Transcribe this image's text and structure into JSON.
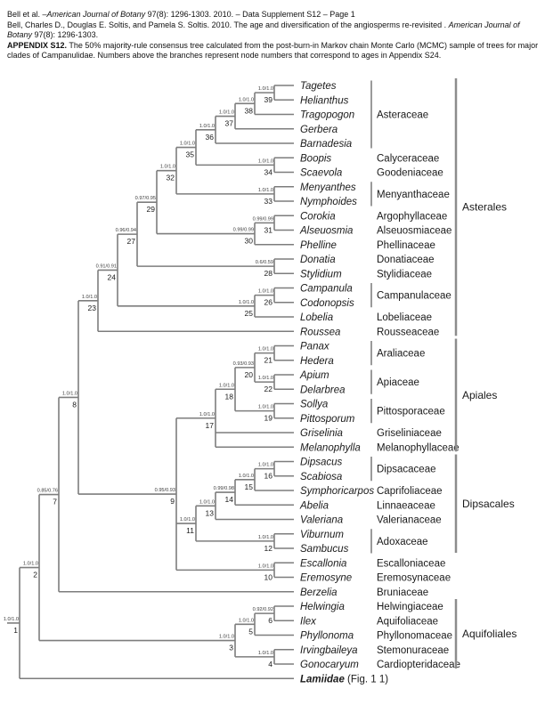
{
  "header": {
    "line1": {
      "pre": "Bell et al. –",
      "italic": "American Journal of Botany",
      "post": " 97(8): 1296-1303. 2010. – Data Supplement S12 – Page 1"
    },
    "line2": {
      "pre": "Bell, Charles D., Douglas E. Soltis, and Pamela S. Soltis. 2010. The age and diversification of the angiosperms re-revisited . ",
      "italic": "American Journal of Botany",
      "post": " 97(8): 1296-1303."
    },
    "line3": {
      "bold": "APPENDIX S12.",
      "text": " The 50% majority-rule consensus tree calculated from the post-burn-in Markov chain Monte Carlo (MCMC) sample of trees for major clades of Campanulidae. Numbers above the branches represent node numbers that correspond to ages in Appendix S24."
    }
  },
  "colors": {
    "branch": "#7d7d7d",
    "bracket": "#9a9a9a",
    "bar": "#8c8c8c",
    "text": "#1a1a1a",
    "support": "#3a3a3a"
  },
  "tree": {
    "id": 1,
    "support": "1.0/1.0",
    "children": [
      {
        "id": 2,
        "support": "1.0/1.0",
        "children": [
          {
            "id": 7,
            "support": "0.85/0.76",
            "children": [
              {
                "id": 8,
                "support": "1.0/1.0",
                "children": [
                  {
                    "id": 23,
                    "support": "1.0/1.0",
                    "children": [
                      {
                        "id": 24,
                        "support": "0.91/0.91",
                        "children": [
                          {
                            "id": 27,
                            "support": "0.96/0.94",
                            "children": [
                              {
                                "id": 29,
                                "support": "0.97/0.95",
                                "children": [
                                  {
                                    "id": 32,
                                    "support": "1.0/1.0",
                                    "children": [
                                      {
                                        "id": 35,
                                        "support": "1.0/1.0",
                                        "children": [
                                          {
                                            "id": 36,
                                            "support": "1.0/1.0",
                                            "children": [
                                              {
                                                "id": 37,
                                                "support": "1.0/1.0",
                                                "children": [
                                                  {
                                                    "id": 38,
                                                    "support": "1.0/1.0",
                                                    "children": [
                                                      {
                                                        "id": 39,
                                                        "support": "1.0/1.0",
                                                        "children": [
                                                          {
                                                            "tip": "Tagetes"
                                                          },
                                                          {
                                                            "tip": "Helianthus"
                                                          }
                                                        ]
                                                      },
                                                      {
                                                        "tip": "Tragopogon"
                                                      }
                                                    ]
                                                  },
                                                  {
                                                    "tip": "Gerbera"
                                                  }
                                                ]
                                              },
                                              {
                                                "tip": "Barnadesia"
                                              }
                                            ]
                                          },
                                          {
                                            "id": 34,
                                            "support": "1.0/1.0",
                                            "children": [
                                              {
                                                "tip": "Boopis"
                                              },
                                              {
                                                "tip": "Scaevola"
                                              }
                                            ]
                                          }
                                        ]
                                      },
                                      {
                                        "id": 33,
                                        "support": "1.0/1.0",
                                        "children": [
                                          {
                                            "tip": "Menyanthes"
                                          },
                                          {
                                            "tip": "Nymphoides"
                                          }
                                        ]
                                      }
                                    ]
                                  },
                                  {
                                    "id": 30,
                                    "support": "0.99/0.99",
                                    "children": [
                                      {
                                        "id": 31,
                                        "support": "0.99/0.99",
                                        "children": [
                                          {
                                            "tip": "Corokia"
                                          },
                                          {
                                            "tip": "Alseuosmia"
                                          }
                                        ]
                                      },
                                      {
                                        "tip": "Phelline"
                                      }
                                    ]
                                  }
                                ]
                              },
                              {
                                "id": 28,
                                "support": "0.6/0.59",
                                "children": [
                                  {
                                    "tip": "Donatia"
                                  },
                                  {
                                    "tip": "Stylidium"
                                  }
                                ]
                              }
                            ]
                          },
                          {
                            "id": 25,
                            "support": "1.0/1.0",
                            "children": [
                              {
                                "id": 26,
                                "support": "1.0/1.0",
                                "children": [
                                  {
                                    "tip": "Campanula"
                                  },
                                  {
                                    "tip": "Codonopsis"
                                  }
                                ]
                              },
                              {
                                "tip": "Lobelia"
                              }
                            ]
                          }
                        ]
                      },
                      {
                        "tip": "Roussea"
                      }
                    ]
                  },
                  {
                    "id": 9,
                    "support": "0.95/0.93",
                    "children": [
                      {
                        "id": 17,
                        "support": "1.0/1.0",
                        "children": [
                          {
                            "id": 18,
                            "support": "1.0/1.0",
                            "children": [
                              {
                                "id": 20,
                                "support": "0.93/0.93",
                                "children": [
                                  {
                                    "id": 21,
                                    "support": "1.0/1.0",
                                    "children": [
                                      {
                                        "tip": "Panax"
                                      },
                                      {
                                        "tip": "Hedera"
                                      }
                                    ]
                                  },
                                  {
                                    "id": 22,
                                    "support": "1.0/1.0",
                                    "children": [
                                      {
                                        "tip": "Apium"
                                      },
                                      {
                                        "tip": "Delarbrea"
                                      }
                                    ]
                                  }
                                ]
                              },
                              {
                                "id": 19,
                                "support": "1.0/1.0",
                                "children": [
                                  {
                                    "tip": "Sollya"
                                  },
                                  {
                                    "tip": "Pittosporum"
                                  }
                                ]
                              }
                            ]
                          },
                          {
                            "tip": "Griselinia"
                          },
                          {
                            "tip": "Melanophylla"
                          }
                        ]
                      },
                      {
                        "id": 11,
                        "support": "1.0/1.0",
                        "children": [
                          {
                            "id": 13,
                            "support": "1.0/1.0",
                            "children": [
                              {
                                "id": 14,
                                "support": "0.99/0.98",
                                "children": [
                                  {
                                    "id": 15,
                                    "support": "1.0/1.0",
                                    "children": [
                                      {
                                        "id": 16,
                                        "support": "1.0/1.0",
                                        "children": [
                                          {
                                            "tip": "Dipsacus"
                                          },
                                          {
                                            "tip": "Scabiosa"
                                          }
                                        ]
                                      },
                                      {
                                        "tip": "Symphoricarpos"
                                      }
                                    ]
                                  },
                                  {
                                    "tip": "Abelia"
                                  }
                                ]
                              },
                              {
                                "tip": "Valeriana"
                              }
                            ]
                          },
                          {
                            "id": 12,
                            "support": "1.0/1.0",
                            "children": [
                              {
                                "tip": "Viburnum"
                              },
                              {
                                "tip": "Sambucus"
                              }
                            ]
                          }
                        ]
                      },
                      {
                        "id": 10,
                        "support": "1.0/1.0",
                        "children": [
                          {
                            "tip": "Escallonia"
                          },
                          {
                            "tip": "Eremosyne"
                          }
                        ]
                      }
                    ]
                  }
                ]
              },
              {
                "tip": "Berzelia"
              }
            ]
          },
          {
            "id": 3,
            "support": "1.0/1.0",
            "children": [
              {
                "id": 5,
                "support": "1.0/1.0",
                "children": [
                  {
                    "id": 6,
                    "support": "0.92/0.92",
                    "children": [
                      {
                        "tip": "Helwingia"
                      },
                      {
                        "tip": "Ilex"
                      }
                    ]
                  },
                  {
                    "tip": "Phyllonoma"
                  }
                ]
              },
              {
                "id": 4,
                "support": "1.0/1.0",
                "children": [
                  {
                    "tip": "Irvingbaileya"
                  },
                  {
                    "tip": "Gonocaryum"
                  }
                ]
              }
            ]
          }
        ]
      },
      {
        "tip": "Lamiidae",
        "bold": true,
        "suffix": " (Fig. 1 1)"
      }
    ]
  },
  "families": [
    {
      "label": "Asteraceae",
      "start": 0,
      "end": 4
    },
    {
      "label": "Calyceraceae",
      "start": 5,
      "end": 5
    },
    {
      "label": "Goodeniaceae",
      "start": 6,
      "end": 6
    },
    {
      "label": "Menyanthaceae",
      "start": 7,
      "end": 8
    },
    {
      "label": "Argophyllaceae",
      "start": 9,
      "end": 9
    },
    {
      "label": "Alseuosmiaceae",
      "start": 10,
      "end": 10
    },
    {
      "label": "Phellinaceae",
      "start": 11,
      "end": 11
    },
    {
      "label": "Donatiaceae",
      "start": 12,
      "end": 12
    },
    {
      "label": "Stylidiaceae",
      "start": 13,
      "end": 13
    },
    {
      "label": "Campanulaceae",
      "start": 14,
      "end": 15
    },
    {
      "label": "Lobeliaceae",
      "start": 16,
      "end": 16
    },
    {
      "label": "Rousseaceae",
      "start": 17,
      "end": 17
    },
    {
      "label": "Araliaceae",
      "start": 18,
      "end": 19
    },
    {
      "label": "Apiaceae",
      "start": 20,
      "end": 21
    },
    {
      "label": "Pittosporaceae",
      "start": 22,
      "end": 23
    },
    {
      "label": "Griseliniaceae",
      "start": 24,
      "end": 24
    },
    {
      "label": "Melanophyllaceae",
      "start": 25,
      "end": 25
    },
    {
      "label": "Dipsacaceae",
      "start": 26,
      "end": 27
    },
    {
      "label": "Caprifoliaceae",
      "start": 28,
      "end": 28
    },
    {
      "label": "Linnaeaceae",
      "start": 29,
      "end": 29
    },
    {
      "label": "Valerianaceae",
      "start": 30,
      "end": 30
    },
    {
      "label": "Adoxaceae",
      "start": 31,
      "end": 32
    },
    {
      "label": "Escalloniaceae",
      "start": 33,
      "end": 33
    },
    {
      "label": "Eremosynaceae",
      "start": 34,
      "end": 34
    },
    {
      "label": "Bruniaceae",
      "start": 35,
      "end": 35
    },
    {
      "label": "Helwingiaceae",
      "start": 36,
      "end": 36
    },
    {
      "label": "Aquifoliaceae",
      "start": 37,
      "end": 37
    },
    {
      "label": "Phyllonomaceae",
      "start": 38,
      "end": 38
    },
    {
      "label": "Stemonuraceae",
      "start": 39,
      "end": 39
    },
    {
      "label": "Cardiopteridaceae",
      "start": 40,
      "end": 40
    }
  ],
  "orders": [
    {
      "label": "Asterales",
      "start": 0,
      "end": 17
    },
    {
      "label": "Apiales",
      "start": 18,
      "end": 25
    },
    {
      "label": "Dipsacales",
      "start": 26,
      "end": 32
    },
    {
      "label": "Aquifoliales",
      "start": 36,
      "end": 40
    }
  ]
}
